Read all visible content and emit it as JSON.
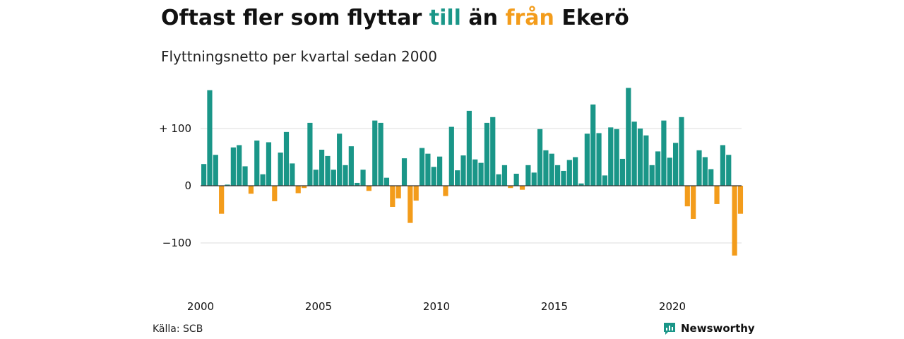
{
  "title": {
    "part1": "Oftast fler som flyttar ",
    "till": "till",
    "part2": " än ",
    "fran": "från",
    "part3": " Ekerö"
  },
  "subtitle": "Flyttningsnetto per kvartal sedan 2000",
  "source": "Källa: SCB",
  "brand": "Newsworthy",
  "colors": {
    "positive": "#1a9688",
    "negative": "#f39c1b",
    "grid": "#dddddd",
    "brand": "#1a9688"
  },
  "chart_data": {
    "type": "bar",
    "start_year": 2000,
    "quarters_per_year": 4,
    "x_tick_labels": [
      "2000",
      "2005",
      "2010",
      "2015",
      "2020"
    ],
    "y_tick_labels": [
      "+ 100",
      "0",
      "−100"
    ],
    "y_ticks": [
      100,
      0,
      -100
    ],
    "ylim": [
      -140,
      190
    ],
    "grid": true,
    "values": [
      38,
      167,
      54,
      -49,
      2,
      67,
      71,
      34,
      -14,
      79,
      20,
      76,
      -27,
      58,
      94,
      39,
      -13,
      -4,
      110,
      28,
      63,
      52,
      28,
      91,
      36,
      69,
      5,
      28,
      -9,
      114,
      110,
      14,
      -37,
      -22,
      48,
      -65,
      -26,
      66,
      56,
      33,
      51,
      -18,
      103,
      27,
      53,
      131,
      46,
      40,
      110,
      120,
      20,
      36,
      -4,
      21,
      -7,
      36,
      23,
      99,
      62,
      56,
      36,
      26,
      45,
      50,
      4,
      91,
      142,
      92,
      18,
      102,
      99,
      47,
      171,
      112,
      100,
      88,
      36,
      60,
      114,
      49,
      75,
      120,
      -36,
      -58,
      62,
      50,
      29,
      -32,
      71,
      54,
      -122,
      -49
    ]
  }
}
